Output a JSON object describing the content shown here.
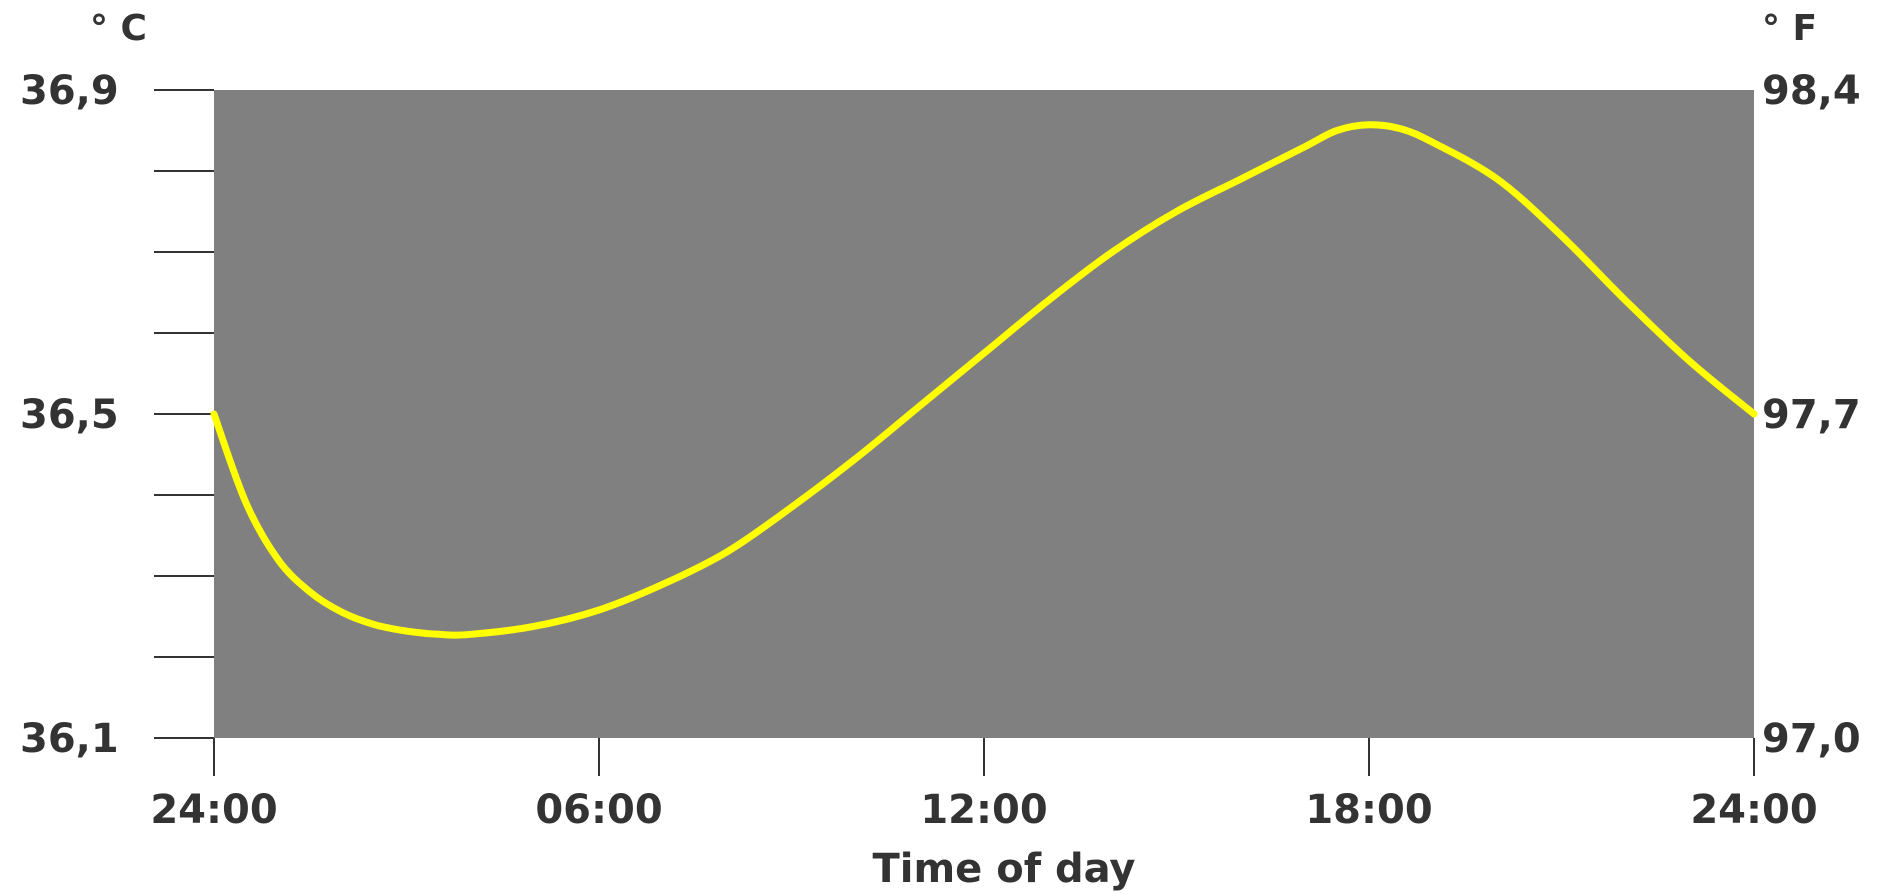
{
  "chart_data": {
    "type": "line",
    "title": "",
    "xlabel": "Time of day",
    "ylabel_left": "° C",
    "ylabel_right": "° F",
    "x_ticks": [
      {
        "hour": 0,
        "label": "24:00"
      },
      {
        "hour": 6,
        "label": "06:00"
      },
      {
        "hour": 12,
        "label": "12:00"
      },
      {
        "hour": 18,
        "label": "18:00"
      },
      {
        "hour": 24,
        "label": "24:00"
      }
    ],
    "xlim": [
      0,
      24
    ],
    "ylim_left": [
      36.1,
      36.9
    ],
    "ylim_right": [
      97.0,
      98.4
    ],
    "y_ticks_left": [
      {
        "value": 36.1,
        "label": "36,1"
      },
      {
        "value": 36.5,
        "label": "36,5"
      },
      {
        "value": 36.9,
        "label": "36,9"
      }
    ],
    "y_ticks_right": [
      {
        "value": 97.0,
        "label": "97,0"
      },
      {
        "value": 97.7,
        "label": "97,7"
      },
      {
        "value": 98.4,
        "label": "98,4"
      }
    ],
    "y_minor_ticks_left": [
      36.2,
      36.3,
      36.4,
      36.6,
      36.7,
      36.8
    ],
    "grid": false,
    "plot_background": "#808080",
    "series": [
      {
        "color": "#ffff00",
        "x": [
          0,
          0.5,
          1,
          1.5,
          2,
          2.5,
          3,
          3.5,
          4,
          5,
          6,
          7,
          8,
          9,
          10,
          11,
          12,
          13,
          14,
          15,
          16,
          17,
          17.5,
          18,
          18.5,
          19,
          20,
          21,
          22,
          23,
          24
        ],
        "y": [
          36.5,
          36.39,
          36.32,
          36.28,
          36.255,
          36.24,
          36.232,
          36.228,
          36.228,
          36.238,
          36.258,
          36.29,
          36.33,
          36.385,
          36.445,
          36.51,
          36.575,
          36.64,
          36.7,
          36.75,
          36.79,
          36.83,
          36.85,
          36.857,
          36.852,
          36.835,
          36.79,
          36.72,
          36.64,
          36.565,
          36.5
        ]
      }
    ]
  }
}
